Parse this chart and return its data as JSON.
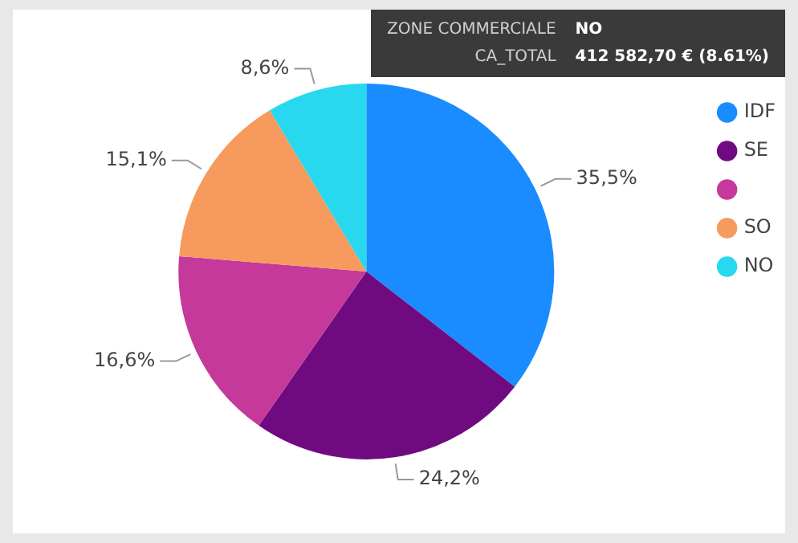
{
  "chart_data": {
    "type": "pie",
    "categories": [
      "IDF",
      "SE",
      null,
      "SO",
      "NO"
    ],
    "values": [
      35.5,
      24.2,
      16.6,
      15.1,
      8.6
    ],
    "value_labels": [
      "35,5%",
      "24,2%",
      "16,6%",
      "15,1%",
      "8,6%"
    ],
    "colors": [
      "#1a8cff",
      "#6f0a80",
      "#c4399a",
      "#f79a5e",
      "#27d8ee"
    ],
    "legend": "top right",
    "annotations": [
      "ZONE COMMERCIALE",
      "NO",
      "CA_TOTAL",
      "412 582,70 € (8.61%)"
    ]
  }
}
